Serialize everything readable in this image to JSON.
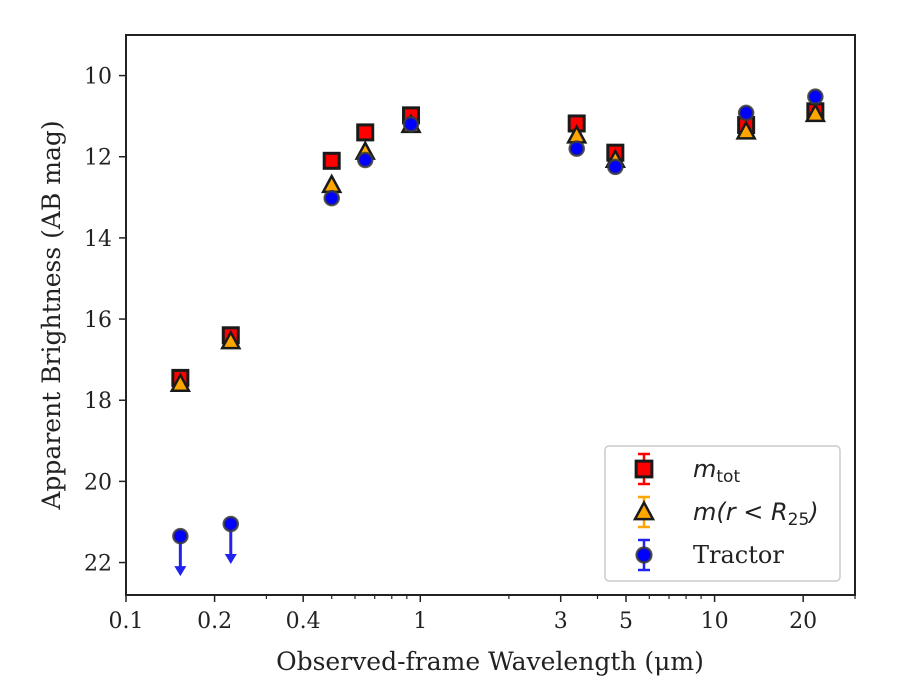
{
  "chart_data": {
    "type": "scatter",
    "xlabel": "Observed-frame Wavelength (μm)",
    "ylabel": "Apparent Brightness (AB mag)",
    "xscale": "log",
    "xlim": [
      0.1,
      30
    ],
    "ylim": [
      22.8,
      9.0
    ],
    "y_inverted": true,
    "grid": false,
    "legend_position": "lower-right",
    "x_ticks": [
      0.1,
      0.2,
      0.4,
      1,
      3,
      5,
      10,
      20
    ],
    "x_tick_labels": [
      "0.1",
      "0.2",
      "0.4",
      "1",
      "3",
      "5",
      "10",
      "20"
    ],
    "y_ticks": [
      10,
      12,
      14,
      16,
      18,
      20,
      22
    ],
    "y_tick_labels": [
      "10",
      "12",
      "14",
      "16",
      "18",
      "20",
      "22"
    ],
    "series": [
      {
        "name": "m_tot",
        "label_parts": {
          "main": "m",
          "sub": "tot"
        },
        "marker": "square",
        "color": "#ff0000",
        "edge": "#1a1a1a",
        "points": [
          {
            "x": 0.153,
            "y": 17.45
          },
          {
            "x": 0.227,
            "y": 16.4
          },
          {
            "x": 0.5,
            "y": 12.1
          },
          {
            "x": 0.65,
            "y": 11.4
          },
          {
            "x": 0.93,
            "y": 10.98
          },
          {
            "x": 3.4,
            "y": 11.18
          },
          {
            "x": 4.6,
            "y": 11.9
          },
          {
            "x": 12.8,
            "y": 11.22
          },
          {
            "x": 22.0,
            "y": 10.88
          }
        ]
      },
      {
        "name": "m(r < R25)",
        "label_parts": {
          "pre": "m(r < R",
          "sub": "25",
          "post": ")"
        },
        "marker": "triangle",
        "color": "#ffa500",
        "edge": "#1a1a1a",
        "points": [
          {
            "x": 0.153,
            "y": 17.6
          },
          {
            "x": 0.227,
            "y": 16.55
          },
          {
            "x": 0.5,
            "y": 12.7
          },
          {
            "x": 0.65,
            "y": 11.88
          },
          {
            "x": 0.93,
            "y": 11.22
          },
          {
            "x": 3.4,
            "y": 11.48
          },
          {
            "x": 4.6,
            "y": 12.08
          },
          {
            "x": 12.8,
            "y": 11.38
          },
          {
            "x": 22.0,
            "y": 10.95
          }
        ]
      },
      {
        "name": "Tractor",
        "marker": "circle",
        "color": "#0000ff",
        "edge": "#3a3a3a",
        "points": [
          {
            "x": 0.153,
            "y": 21.35,
            "upper_limit": true
          },
          {
            "x": 0.227,
            "y": 21.05,
            "upper_limit": true
          },
          {
            "x": 0.5,
            "y": 13.02
          },
          {
            "x": 0.65,
            "y": 12.08
          },
          {
            "x": 0.93,
            "y": 11.2
          },
          {
            "x": 3.4,
            "y": 11.8
          },
          {
            "x": 4.6,
            "y": 12.25
          },
          {
            "x": 12.8,
            "y": 10.92
          },
          {
            "x": 22.0,
            "y": 10.52
          }
        ]
      }
    ]
  }
}
